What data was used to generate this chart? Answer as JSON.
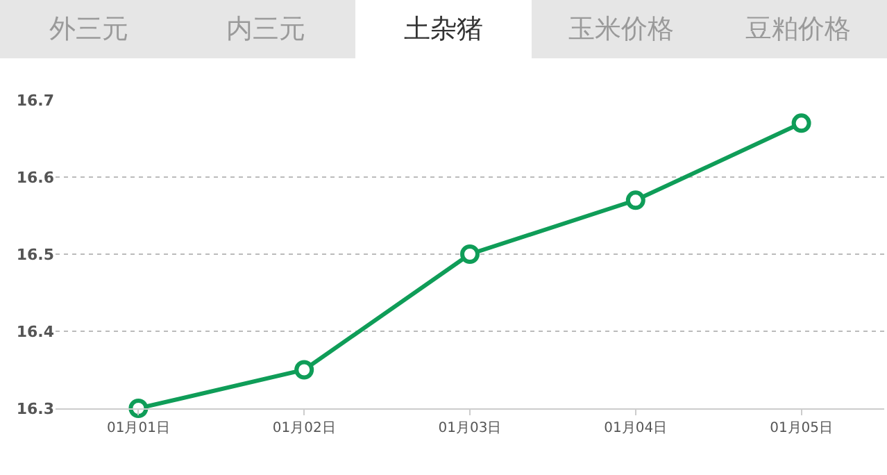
{
  "chart_data": {
    "type": "line",
    "title": "土杂猪",
    "annotations": [
      "外三元",
      "内三元",
      "玉米价格",
      "豆粕价格"
    ],
    "categories": [
      "01月01日",
      "01月02日",
      "01月03日",
      "01月04日",
      "01月05日"
    ],
    "series": [
      {
        "color": "#0f9d58",
        "values": [
          16.3,
          16.35,
          16.5,
          16.57,
          16.67
        ]
      }
    ],
    "ylim": [
      16.3,
      16.7
    ],
    "yticks": [
      16.3,
      16.4,
      16.5,
      16.6,
      16.7
    ],
    "grid": "y",
    "marker": "circle",
    "line_style": "solid",
    "legend": false
  }
}
